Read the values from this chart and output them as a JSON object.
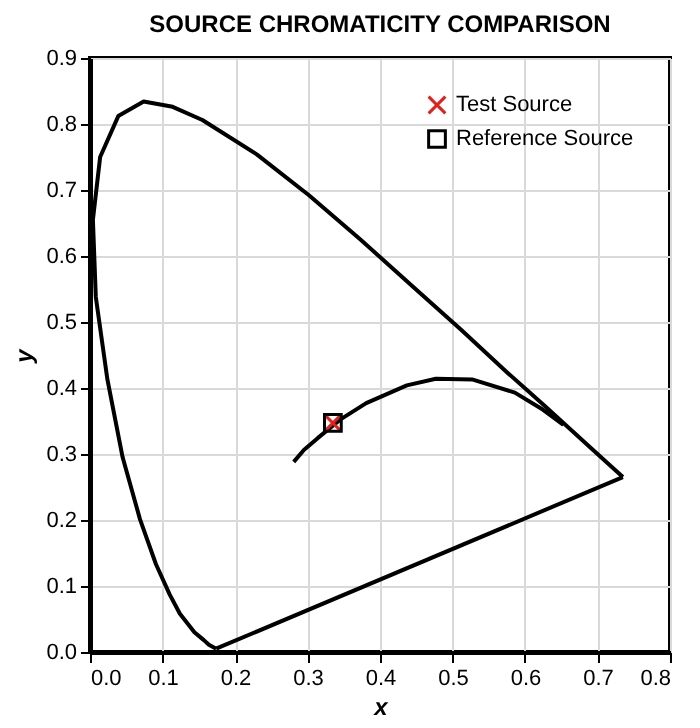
{
  "chart_data": {
    "type": "line",
    "title": "SOURCE CHROMATICITY COMPARISON",
    "xlabel": "x",
    "ylabel": "y",
    "xlim": [
      0,
      0.8
    ],
    "xticks": [
      {
        "value": 0,
        "label": "0.0"
      },
      0.1,
      0.2,
      0.3,
      0.4,
      0.5,
      0.6,
      0.7,
      0.8
    ],
    "ylim": [
      0,
      0.9
    ],
    "yticks": [
      {
        "value": 0,
        "label": "0.0"
      },
      0.1,
      0.2,
      0.3,
      0.4,
      0.5,
      0.6,
      0.7,
      0.8,
      0.9
    ],
    "grid": true,
    "legend": "top right",
    "series": [
      {
        "color": "#000000",
        "marker": "none",
        "x": [
          0.174,
          0.164,
          0.157,
          0.144,
          0.124,
          0.11,
          0.091,
          0.069,
          0.045,
          0.024,
          0.008,
          0.004,
          0.014,
          0.039,
          0.074,
          0.114,
          0.155,
          0.23,
          0.302,
          0.373,
          0.444,
          0.513,
          0.575,
          0.627,
          0.692,
          0.719,
          0.735
        ],
        "values": [
          0.005,
          0.011,
          0.018,
          0.03,
          0.058,
          0.087,
          0.133,
          0.201,
          0.295,
          0.413,
          0.538,
          0.655,
          0.75,
          0.812,
          0.834,
          0.826,
          0.806,
          0.754,
          0.692,
          0.625,
          0.555,
          0.487,
          0.424,
          0.373,
          0.308,
          0.281,
          0.265
        ]
      },
      {
        "color": "#000000",
        "marker": "none",
        "x": [
          0.735,
          0.174
        ],
        "values": [
          0.265,
          0.005
        ]
      },
      {
        "color": "#000000",
        "marker": "none",
        "x": [
          0.281,
          0.295,
          0.314,
          0.345,
          0.381,
          0.437,
          0.477,
          0.527,
          0.586,
          0.625,
          0.653
        ],
        "values": [
          0.288,
          0.306,
          0.324,
          0.352,
          0.377,
          0.404,
          0.414,
          0.413,
          0.393,
          0.367,
          0.344
        ]
      },
      {
        "type": "scatter",
        "name": "Test Source",
        "color": "#e0201b",
        "marker": "cross",
        "x": [
          0.335
        ],
        "values": [
          0.347
        ]
      },
      {
        "type": "scatter",
        "name": "Reference Source",
        "color": "#000000",
        "marker": "square",
        "x": [
          0.335
        ],
        "values": [
          0.347
        ]
      }
    ]
  }
}
